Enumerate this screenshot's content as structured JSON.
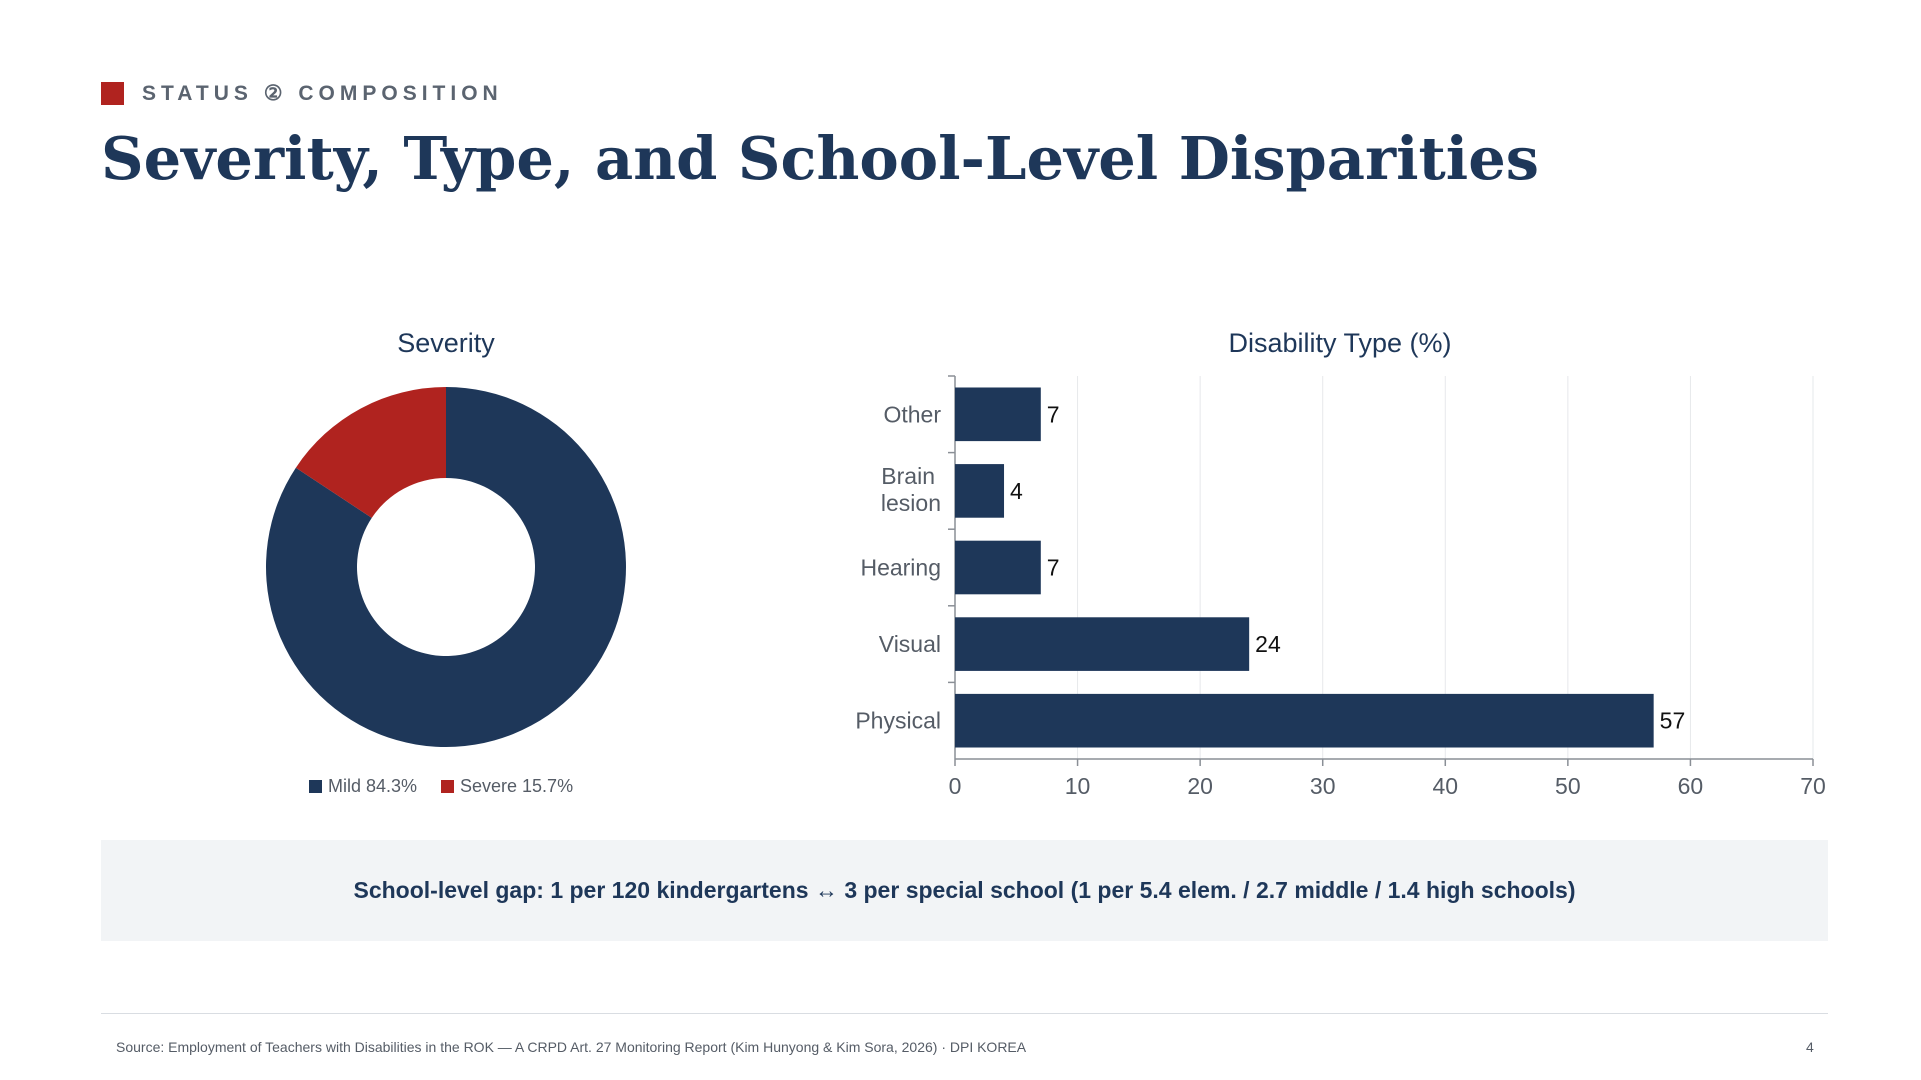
{
  "header": {
    "section_label": "STATUS ② COMPOSITION",
    "title": "Severity, Type, and School-Level Disparities"
  },
  "colors": {
    "navy": "#1e3759",
    "red": "#b0231f",
    "gray_text": "#555c66",
    "panel_bg": "#f2f4f6"
  },
  "chart_data": [
    {
      "type": "pie",
      "title": "Severity",
      "donut": true,
      "slices": [
        {
          "label": "Mild",
          "value": 84.3,
          "color": "#1e3759"
        },
        {
          "label": "Severe",
          "value": 15.7,
          "color": "#b0231f"
        }
      ],
      "legend": [
        "Mild 84.3%",
        "Severe 15.7%"
      ],
      "legend_position": "bottom"
    },
    {
      "type": "bar",
      "orientation": "horizontal",
      "title": "Disability Type (%)",
      "categories": [
        "Other",
        "Brain lesion",
        "Hearing",
        "Visual",
        "Physical"
      ],
      "values": [
        7,
        4,
        7,
        24,
        57
      ],
      "xlim": [
        0,
        70
      ],
      "xticks": [
        0,
        10,
        20,
        30,
        40,
        50,
        60,
        70
      ],
      "grid": true,
      "bar_color": "#1e3759"
    }
  ],
  "callout": {
    "text": "School-level gap: 1 per 120 kindergartens ↔ 3 per special school (1 per 5.4 elem. / 2.7 middle / 1.4 high schools)"
  },
  "footer": {
    "source": "Source: Employment of Teachers with Disabilities in the ROK — A CRPD Art. 27 Monitoring Report (Kim Hunyong & Kim Sora, 2026) · DPI KOREA",
    "page_number": "4"
  }
}
